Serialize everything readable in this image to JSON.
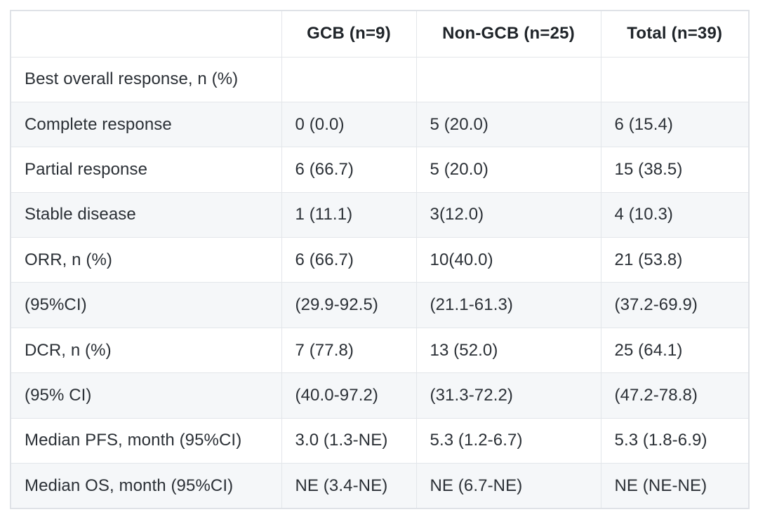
{
  "colors": {
    "background": "#ffffff",
    "stripe_row": "#f5f7f9",
    "border_outer": "#dfe2e7",
    "border_inner": "#e3e6ea",
    "header_text": "#1f2429",
    "body_text": "#2b3036"
  },
  "table": {
    "columns": [
      "",
      "GCB (n=9)",
      "Non-GCB (n=25)",
      "Total (n=39)"
    ],
    "rows": [
      {
        "label": "Best overall response, n (%)",
        "gcb": "",
        "non_gcb": "",
        "total": ""
      },
      {
        "label": "Complete response",
        "gcb": "0 (0.0)",
        "non_gcb": "5 (20.0)",
        "total": "6 (15.4)"
      },
      {
        "label": "Partial response",
        "gcb": "6 (66.7)",
        "non_gcb": "5 (20.0)",
        "total": "15 (38.5)"
      },
      {
        "label": "Stable disease",
        "gcb": "1 (11.1)",
        "non_gcb": "3(12.0)",
        "total": "4 (10.3)"
      },
      {
        "label": "ORR, n (%)",
        "gcb": "6 (66.7)",
        "non_gcb": "10(40.0)",
        "total": "21 (53.8)"
      },
      {
        "label": "(95%CI)",
        "gcb": "(29.9-92.5)",
        "non_gcb": "(21.1-61.3)",
        "total": "(37.2-69.9)"
      },
      {
        "label": "DCR, n (%)",
        "gcb": "7 (77.8)",
        "non_gcb": "13 (52.0)",
        "total": "25 (64.1)"
      },
      {
        "label": "(95% CI)",
        "gcb": "(40.0-97.2)",
        "non_gcb": "(31.3-72.2)",
        "total": "(47.2-78.8)"
      },
      {
        "label": "Median PFS, month (95%CI)",
        "gcb": "3.0 (1.3-NE)",
        "non_gcb": "5.3 (1.2-6.7)",
        "total": "5.3 (1.8-6.9)"
      },
      {
        "label": "Median OS, month (95%CI)",
        "gcb": "NE (3.4-NE)",
        "non_gcb": "NE (6.7-NE)",
        "total": "NE (NE-NE)"
      }
    ]
  }
}
